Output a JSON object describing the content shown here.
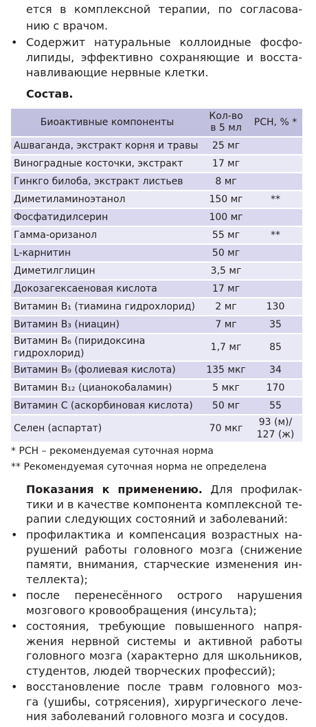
{
  "intro": {
    "lines": [
      "ется в комплексной терапии, по согласова-",
      "нию с врачом."
    ]
  },
  "top_bullets": [
    [
      "Содержит натуральные коллоидные фосфо-",
      "липиды, эффективно сохраняющие и восста-",
      "навливающие нервные клетки."
    ]
  ],
  "composition_title": "Состав.",
  "table": {
    "header": [
      "Биоактивные компоненты",
      "Кол-во в 5 мл",
      "РСН, % *"
    ],
    "rows": [
      [
        "Ашваганда, экстракт корня и травы",
        "25 мг"
      ],
      [
        "Виноградные косточки, экстракт",
        "17 мг"
      ],
      [
        "Гинкго билоба, экстракт листьев",
        "8 мг"
      ],
      [
        "Диметиламиноэтанол",
        "150 мг",
        "**"
      ],
      [
        "Фосфатидилсерин",
        "100 мг"
      ],
      [
        "Гамма-оризанол",
        "55 мг",
        "**"
      ],
      [
        "L-карнитин",
        "50 мг"
      ],
      [
        "Диметилглицин",
        "3,5 мг"
      ],
      [
        "Докозагексаеновая кислота",
        "17 мг"
      ],
      [
        "Витамин B₁ (тиамина гидрохлорид)",
        "2 мг",
        "130"
      ],
      [
        "Витамин B₃ (ниацин)",
        "7 мг",
        "35"
      ],
      [
        "Витамин B₆ (пиридоксина гидрохлорид)",
        "1,7 мг",
        "85"
      ],
      [
        "Витамин B₉ (фолиевая кислота)",
        "135 мкг",
        "34"
      ],
      [
        "Витамин B₁₂ (цианокобаламин)",
        "5 мкг",
        "170"
      ],
      [
        "Витамин C (аскорбиновая кислота)",
        "50 мг",
        "55"
      ],
      [
        "Селен (аспартат)",
        "70 мкг",
        "93 (м)/ 127 (ж)"
      ]
    ]
  },
  "footnotes": [
    "* РСН – рекомендуемая суточная норма",
    "** Рекомендуемая суточная норма не определена"
  ],
  "indications": {
    "title": "Показания к применению.",
    "lines": [
      "Для профилак-",
      "тики и в качестве компонента комплексной те-",
      "рапии следующих состояний и заболеваний:"
    ],
    "bullets": [
      [
        "профилактика и компенсация возрастных на-",
        "рушений работы головного мозга (снижение",
        "памяти, внимания, старческие изменения ин-",
        "теллекта);"
      ],
      [
        "после перенесённого острого нарушения",
        "мозгового кровообращения (инсульта);"
      ],
      [
        "состояния, требующие повышенного напря-",
        "жения нервной системы и активной работы",
        "головного мозга (характерно для школьников,",
        "студентов, людей творческих профессий);"
      ],
      [
        "восстановление после травм головного моз-",
        "га (ушибы, сотрясения), хирургического лече-",
        "ния заболеваний головного мозга и сосудов."
      ]
    ]
  }
}
